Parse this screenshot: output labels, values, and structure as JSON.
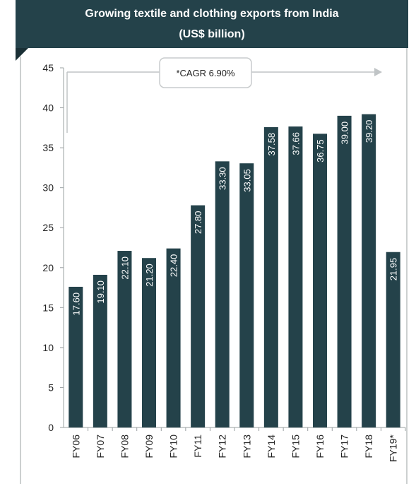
{
  "chart_data": {
    "type": "bar",
    "title": "Growing textile and clothing exports from India",
    "subtitle": "(US$ billion)",
    "categories": [
      "FY06",
      "FY07",
      "FY08",
      "FY09",
      "FY10",
      "FY11",
      "FY12",
      "FY13",
      "FY14",
      "FY15",
      "FY16",
      "FY17",
      "FY18",
      "FY19*"
    ],
    "values": [
      17.6,
      19.1,
      22.1,
      21.2,
      22.4,
      27.8,
      33.3,
      33.05,
      37.58,
      37.66,
      36.75,
      39.0,
      39.2,
      21.95
    ],
    "value_labels": [
      "17.60",
      "19.10",
      "22.10",
      "21.20",
      "22.40",
      "27.80",
      "33.30",
      "33.05",
      "37.58",
      "37.66",
      "36.75",
      "39.00",
      "39.20",
      "21.95"
    ],
    "y_ticks": [
      "0",
      "5",
      "10",
      "15",
      "20",
      "25",
      "30",
      "35",
      "40",
      "45"
    ],
    "ylim": [
      0,
      45
    ],
    "xlabel": "",
    "ylabel": "",
    "grid": false,
    "annotation": "*CAGR 6.90%",
    "colors": {
      "bar": "#24424a",
      "header": "#24424a",
      "bar_label": "#ffffff"
    }
  }
}
